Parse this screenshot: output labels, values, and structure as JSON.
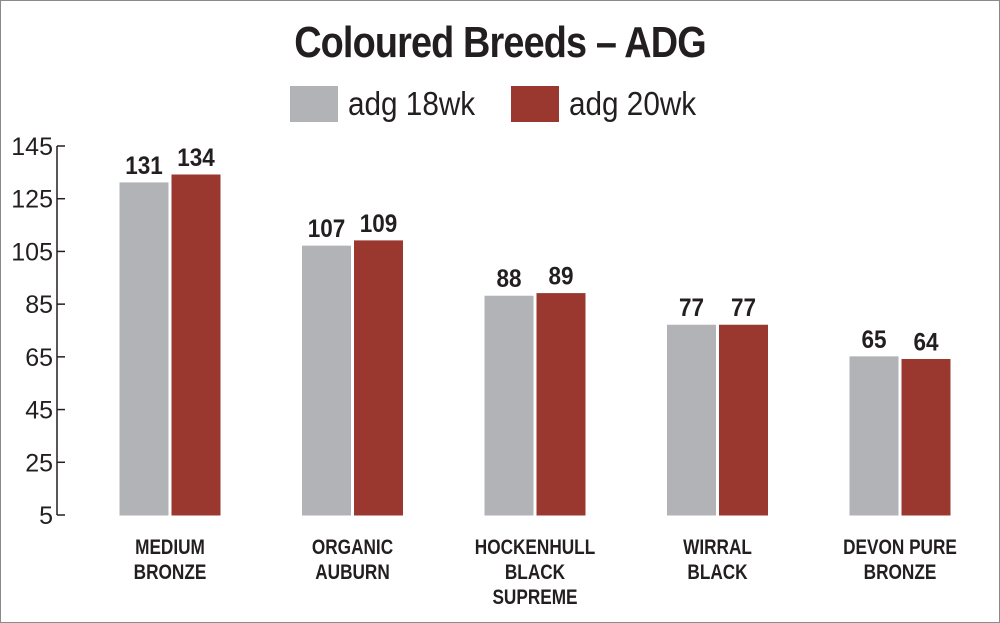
{
  "chart_data": {
    "type": "bar",
    "title": "Coloured Breeds – ADG",
    "xlabel": "",
    "ylabel": "",
    "ylim": [
      5,
      145
    ],
    "yticks": [
      5,
      25,
      45,
      65,
      85,
      105,
      125,
      145
    ],
    "grid": false,
    "legend_position": "top-center",
    "categories": [
      [
        "MEDIUM",
        "BRONZE"
      ],
      [
        "ORGANIC",
        "AUBURN"
      ],
      [
        "HOCKENHULL",
        "BLACK",
        "SUPREME"
      ],
      [
        "WIRRAL",
        "BLACK"
      ],
      [
        "DEVON PURE",
        "BRONZE"
      ]
    ],
    "series": [
      {
        "name": "adg 18wk",
        "color": "#b1b3b6",
        "values": [
          131,
          107,
          88,
          77,
          65
        ]
      },
      {
        "name": "adg 20wk",
        "color": "#9a3830",
        "values": [
          134,
          109,
          89,
          77,
          64
        ]
      }
    ]
  }
}
